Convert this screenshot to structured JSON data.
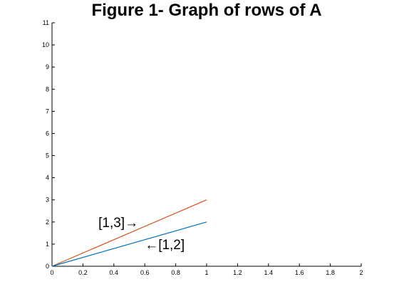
{
  "chart_data": {
    "type": "line",
    "title": "Figure 1- Graph of rows of A",
    "xlabel": "",
    "ylabel": "",
    "xlim": [
      0,
      2
    ],
    "ylim": [
      0,
      11
    ],
    "x_ticks": [
      0,
      0.2,
      0.4,
      0.6,
      0.8,
      1,
      1.2,
      1.4,
      1.6,
      1.8,
      2
    ],
    "x_tick_labels": [
      "0",
      "0.2",
      "0.4",
      "0.6",
      "0.8",
      "1",
      "1.2",
      "1.4",
      "1.6",
      "1.8",
      "2"
    ],
    "y_ticks": [
      0,
      1,
      2,
      3,
      4,
      5,
      6,
      7,
      8,
      9,
      10,
      11
    ],
    "y_tick_labels": [
      "0",
      "1",
      "2",
      "3",
      "4",
      "5",
      "6",
      "7",
      "8",
      "9",
      "10",
      "11"
    ],
    "grid": false,
    "series": [
      {
        "x": [
          0,
          1
        ],
        "y": [
          0,
          3
        ],
        "color": "#d95319"
      },
      {
        "x": [
          0,
          1
        ],
        "y": [
          0,
          2
        ],
        "color": "#0072bd"
      }
    ],
    "annotations": [
      {
        "text": "[1,3]→",
        "x": 0.3,
        "y": 2.0,
        "anchor": "start"
      },
      {
        "text": "←[1,2]",
        "x": 0.6,
        "y": 1.0,
        "anchor": "start"
      }
    ]
  }
}
